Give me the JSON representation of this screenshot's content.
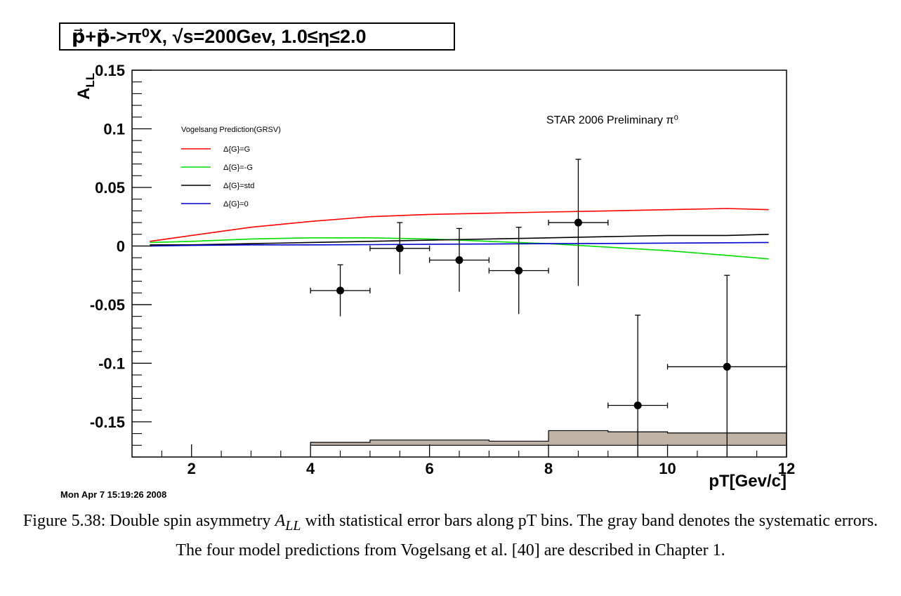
{
  "chart_data": {
    "type": "scatter",
    "title": "p⃗+p⃗->π⁰X, √s=200Gev, 1.0≤η≤2.0",
    "annotation": "STAR 2006 Preliminary π⁰",
    "xlabel": "pT[Gev/c]",
    "ylabel": "A_LL",
    "xlim": [
      1.0,
      12.0
    ],
    "ylim": [
      -0.18,
      0.15
    ],
    "x_ticks": [
      2,
      4,
      6,
      8,
      10,
      12
    ],
    "x_tick_labels": [
      "2",
      "4",
      "6",
      "8",
      "10",
      "12"
    ],
    "y_ticks": [
      -0.15,
      -0.1,
      -0.05,
      0,
      0.05,
      0.1,
      0.15
    ],
    "y_tick_labels": [
      "-0.15",
      "-0.1",
      "-0.05",
      "0",
      "0.05",
      "0.1",
      "0.15"
    ],
    "legend": {
      "title": "Vogelsang Prediction(GRSV)",
      "placement": "top-left",
      "entries": [
        {
          "label": "Δ{G}=G",
          "color": "#ff0000"
        },
        {
          "label": "Δ{G}=-G",
          "color": "#00dd00"
        },
        {
          "label": "Δ{G}=std",
          "color": "#000000"
        },
        {
          "label": "Δ{G}=0",
          "color": "#0000cc"
        }
      ]
    },
    "series": [
      {
        "name": "STAR 2006 Preliminary π⁰",
        "points": [
          {
            "x": 4.5,
            "y": -0.038,
            "xerr": 0.5,
            "yerr": 0.022
          },
          {
            "x": 5.5,
            "y": -0.002,
            "xerr": 0.5,
            "yerr": 0.022
          },
          {
            "x": 6.5,
            "y": -0.012,
            "xerr": 0.5,
            "yerr": 0.027
          },
          {
            "x": 7.5,
            "y": -0.021,
            "xerr": 0.5,
            "yerr": 0.037
          },
          {
            "x": 8.5,
            "y": 0.02,
            "xerr": 0.5,
            "yerr": 0.054
          },
          {
            "x": 9.5,
            "y": -0.136,
            "xerr": 0.5,
            "yerr": 0.077
          },
          {
            "x": 11.0,
            "y": -0.103,
            "xerr": 1.0,
            "yerr": 0.078
          }
        ]
      }
    ],
    "curves": [
      {
        "name": "Δ{G}=G",
        "color": "#ff0000",
        "x": [
          1.3,
          2,
          3,
          4,
          5,
          6,
          7,
          8,
          9,
          10,
          11,
          11.7
        ],
        "y": [
          0.004,
          0.009,
          0.016,
          0.021,
          0.025,
          0.027,
          0.028,
          0.029,
          0.03,
          0.031,
          0.032,
          0.031
        ]
      },
      {
        "name": "Δ{G}=-G",
        "color": "#00dd00",
        "x": [
          1.3,
          2,
          3,
          4,
          5,
          6,
          7,
          8,
          9,
          10,
          11,
          11.7
        ],
        "y": [
          0.003,
          0.004,
          0.006,
          0.007,
          0.007,
          0.006,
          0.004,
          0.002,
          -0.001,
          -0.004,
          -0.008,
          -0.011
        ]
      },
      {
        "name": "Δ{G}=std",
        "color": "#000000",
        "x": [
          1.3,
          2,
          3,
          4,
          5,
          6,
          7,
          8,
          9,
          10,
          11,
          11.7
        ],
        "y": [
          0.001,
          0.001,
          0.002,
          0.003,
          0.004,
          0.005,
          0.006,
          0.007,
          0.008,
          0.009,
          0.009,
          0.01
        ]
      },
      {
        "name": "Δ{G}=0",
        "color": "#0000cc",
        "x": [
          1.3,
          2,
          3,
          4,
          5,
          6,
          7,
          8,
          9,
          10,
          11,
          11.7
        ],
        "y": [
          0.0,
          0.0005,
          0.001,
          0.001,
          0.0012,
          0.0015,
          0.0017,
          0.002,
          0.0022,
          0.0025,
          0.0028,
          0.003
        ]
      }
    ],
    "systematic_band": {
      "color": "#bfb3a6",
      "base": -0.17,
      "bins": [
        {
          "x0": 4,
          "x1": 5,
          "top": -0.1675
        },
        {
          "x0": 5,
          "x1": 7,
          "top": -0.1655
        },
        {
          "x0": 7,
          "x1": 8,
          "top": -0.1665
        },
        {
          "x0": 8,
          "x1": 9,
          "top": -0.1575
        },
        {
          "x0": 9,
          "x1": 10,
          "top": -0.1585
        },
        {
          "x0": 10,
          "x1": 12,
          "top": -0.1595
        }
      ]
    }
  },
  "timestamp": "Mon Apr  7 15:19:26 2008",
  "caption": {
    "prefix": "Figure 5.38: Double spin asymmetry ",
    "symbol_main": "A",
    "symbol_sub": "LL",
    "suffix": " with statistical error bars along pT bins. The gray band denotes the systematic errors. The four model predictions from Vogelsang et al. [40] are described in Chapter 1."
  }
}
